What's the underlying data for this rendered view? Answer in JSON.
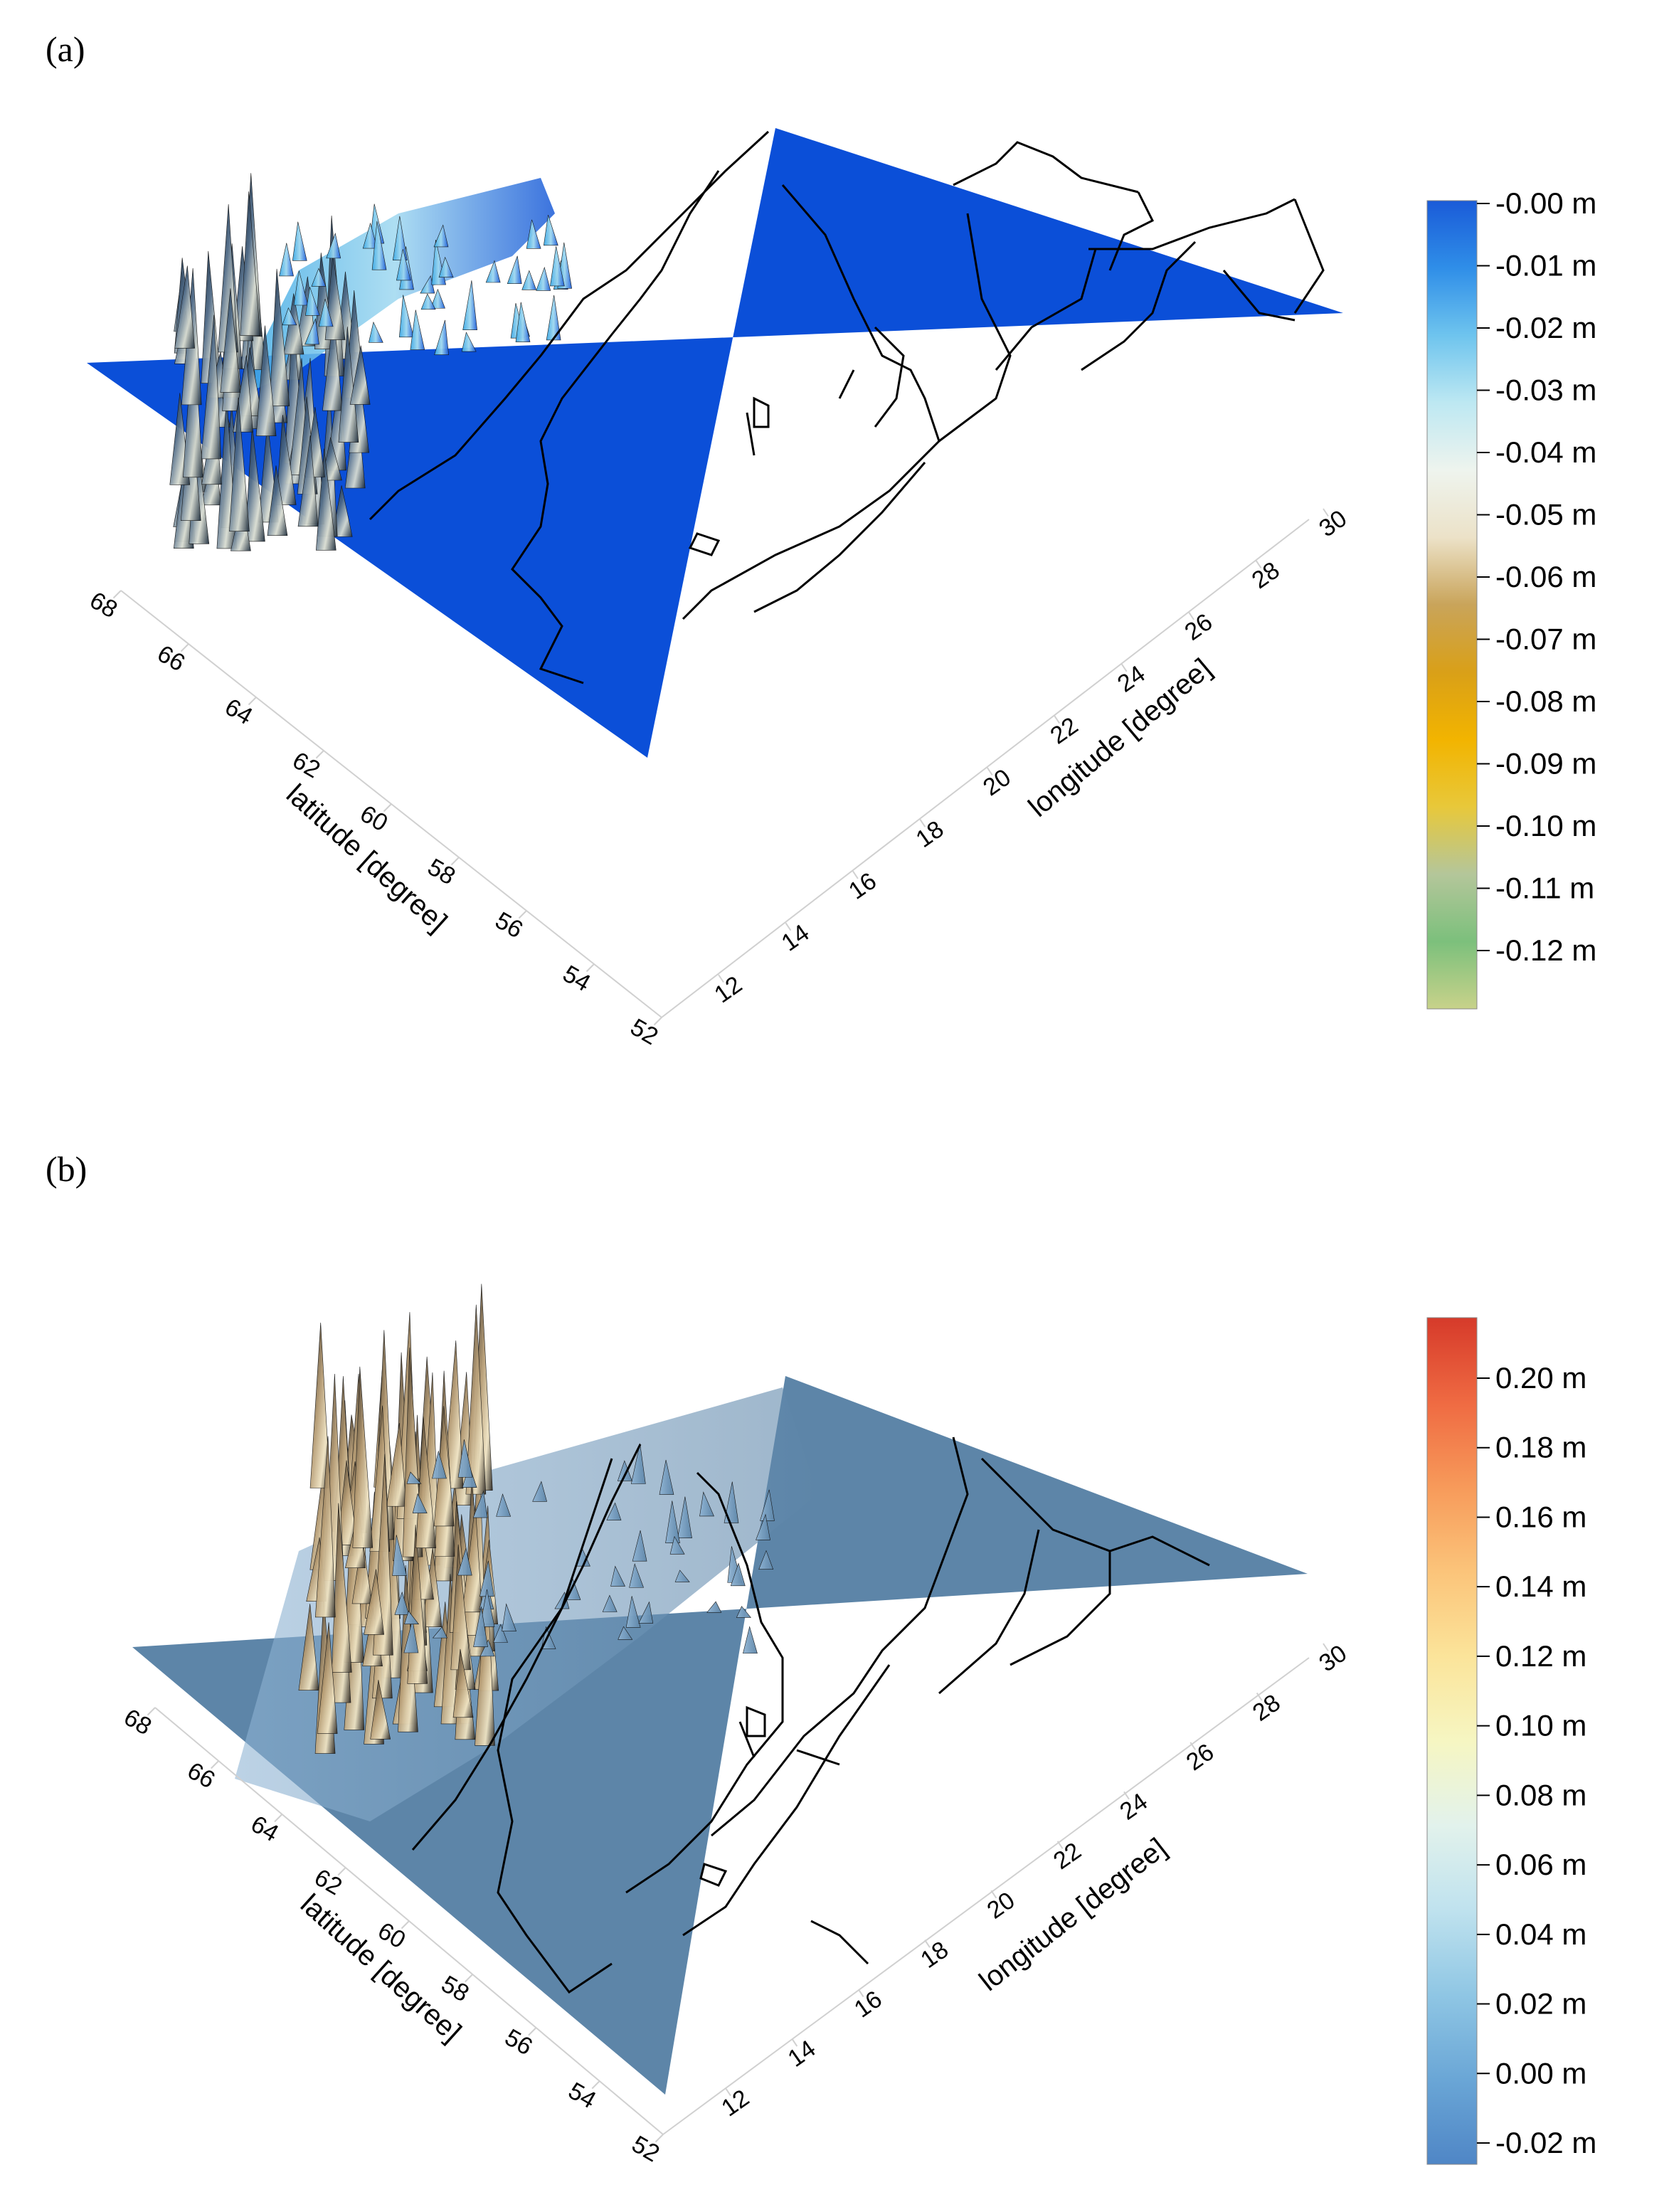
{
  "chart_data": [
    {
      "type": "surface",
      "panel_label": "(a)",
      "xlabel": "longitude [degree]",
      "ylabel": "latitude [degree]",
      "x_ticks": [
        "12",
        "14",
        "16",
        "18",
        "20",
        "22",
        "24",
        "26",
        "28",
        "30"
      ],
      "y_ticks": [
        "52",
        "54",
        "56",
        "58",
        "60",
        "62",
        "64",
        "66",
        "68"
      ],
      "xlim": [
        12,
        30
      ],
      "ylim": [
        52,
        68
      ],
      "colorbar": {
        "labels": [
          "-0.00 m",
          "-0.01 m",
          "-0.02 m",
          "-0.03 m",
          "-0.04 m",
          "-0.05 m",
          "-0.06 m",
          "-0.07 m",
          "-0.08 m",
          "-0.09 m",
          "-0.10 m",
          "-0.11 m",
          "-0.12 m"
        ],
        "range": [
          -0.13,
          0.0
        ],
        "colors": [
          "#1a5bd8",
          "#2f8ee8",
          "#6ec4ee",
          "#bde8f2",
          "#eef4ee",
          "#ece2c8",
          "#c9a45a",
          "#d9a018",
          "#f2b400",
          "#e8c83a",
          "#b4c69a",
          "#7cc07c",
          "#c8d28a"
        ]
      },
      "surface_color": "#0b4fd8"
    },
    {
      "type": "surface",
      "panel_label": "(b)",
      "xlabel": "longitude [degree]",
      "ylabel": "latitude [degree]",
      "x_ticks": [
        "12",
        "14",
        "16",
        "18",
        "20",
        "22",
        "24",
        "26",
        "28",
        "30"
      ],
      "y_ticks": [
        "52",
        "54",
        "56",
        "58",
        "60",
        "62",
        "64",
        "66",
        "68"
      ],
      "xlim": [
        12,
        30
      ],
      "ylim": [
        52,
        68
      ],
      "colorbar": {
        "labels": [
          "0.20 m",
          "0.18 m",
          "0.16 m",
          "0.14 m",
          "0.12 m",
          "0.10 m",
          "0.08 m",
          "0.06 m",
          "0.04 m",
          "0.02 m",
          "0.00 m",
          "-0.02 m"
        ],
        "range": [
          -0.03,
          0.215
        ],
        "colors": [
          "#d63a2a",
          "#ef6a42",
          "#f79a5a",
          "#fbc47a",
          "#fbe49a",
          "#f6f6c2",
          "#e2f2ec",
          "#bfe2ee",
          "#8fc6e4",
          "#6aa6d6",
          "#4f86c6"
        ]
      },
      "surface_color": "#5d85a8"
    }
  ]
}
